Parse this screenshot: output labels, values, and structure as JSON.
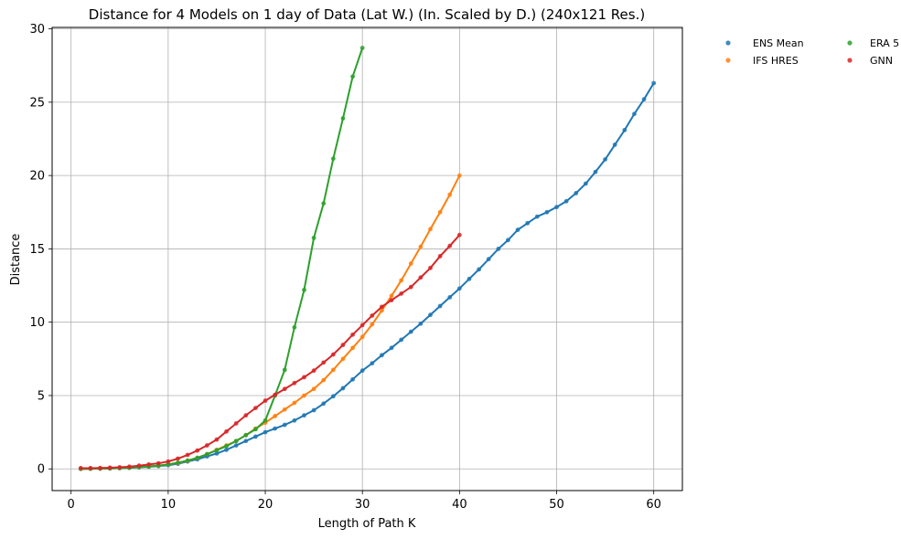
{
  "chart_data": {
    "type": "line",
    "title": "Distance for 4 Models on 1 day of Data (Lat W.) (In. Scaled by D.) (240x121 Res.)",
    "xlabel": "Length of Path K",
    "ylabel": "Distance",
    "xlim": [
      -1.95,
      62.95
    ],
    "ylim": [
      -1.48,
      30.1
    ],
    "xticks": [
      0,
      10,
      20,
      30,
      40,
      50,
      60
    ],
    "yticks": [
      0,
      5,
      10,
      15,
      20,
      25,
      30
    ],
    "grid": true,
    "legend": {
      "placement": "outside-top-right",
      "columns": 2
    },
    "series": [
      {
        "name": "ENS Mean",
        "color": "#1f77b4",
        "x": [
          1,
          2,
          3,
          4,
          5,
          6,
          7,
          8,
          9,
          10,
          11,
          12,
          13,
          14,
          15,
          16,
          17,
          18,
          19,
          20,
          21,
          22,
          23,
          24,
          25,
          26,
          27,
          28,
          29,
          30,
          31,
          32,
          33,
          34,
          35,
          36,
          37,
          38,
          39,
          40,
          41,
          42,
          43,
          44,
          45,
          46,
          47,
          48,
          49,
          50,
          51,
          52,
          53,
          54,
          55,
          56,
          57,
          58,
          59,
          60
        ],
        "values": [
          0.0,
          0.01,
          0.02,
          0.03,
          0.05,
          0.07,
          0.1,
          0.14,
          0.19,
          0.25,
          0.35,
          0.5,
          0.65,
          0.85,
          1.05,
          1.3,
          1.6,
          1.9,
          2.2,
          2.5,
          2.75,
          3.0,
          3.3,
          3.65,
          4.0,
          4.45,
          4.95,
          5.5,
          6.1,
          6.7,
          7.2,
          7.75,
          8.25,
          8.8,
          9.35,
          9.9,
          10.5,
          11.1,
          11.7,
          12.3,
          12.95,
          13.6,
          14.3,
          15.0,
          15.6,
          16.3,
          16.75,
          17.2,
          17.5,
          17.85,
          18.25,
          18.8,
          19.45,
          20.25,
          21.1,
          22.1,
          23.1,
          24.2,
          25.2,
          26.3
        ]
      },
      {
        "name": "IFS HRES",
        "color": "#ff7f0e",
        "x": [
          1,
          2,
          3,
          4,
          5,
          6,
          7,
          8,
          9,
          10,
          11,
          12,
          13,
          14,
          15,
          16,
          17,
          18,
          19,
          20,
          21,
          22,
          23,
          24,
          25,
          26,
          27,
          28,
          29,
          30,
          31,
          32,
          33,
          34,
          35,
          36,
          37,
          38,
          39,
          40
        ],
        "values": [
          0.0,
          0.01,
          0.02,
          0.04,
          0.06,
          0.09,
          0.12,
          0.17,
          0.22,
          0.3,
          0.4,
          0.55,
          0.75,
          1.0,
          1.3,
          1.6,
          1.9,
          2.3,
          2.75,
          3.15,
          3.6,
          4.05,
          4.5,
          5.0,
          5.45,
          6.05,
          6.75,
          7.5,
          8.25,
          9.0,
          9.85,
          10.8,
          11.8,
          12.85,
          14.0,
          15.15,
          16.35,
          17.5,
          18.7,
          20.0
        ]
      },
      {
        "name": "ERA 5",
        "color": "#2ca02c",
        "x": [
          1,
          2,
          3,
          4,
          5,
          6,
          7,
          8,
          9,
          10,
          11,
          12,
          13,
          14,
          15,
          16,
          17,
          18,
          19,
          20,
          21,
          22,
          23,
          24,
          25,
          26,
          27,
          28,
          29,
          30
        ],
        "values": [
          0.0,
          0.01,
          0.02,
          0.03,
          0.05,
          0.08,
          0.12,
          0.17,
          0.22,
          0.3,
          0.42,
          0.57,
          0.75,
          1.0,
          1.27,
          1.55,
          1.9,
          2.3,
          2.7,
          3.3,
          5.0,
          6.75,
          9.65,
          12.2,
          15.75,
          18.1,
          21.15,
          23.9,
          26.75,
          28.7
        ]
      },
      {
        "name": "GNN",
        "color": "#d62728",
        "x": [
          1,
          2,
          3,
          4,
          5,
          6,
          7,
          8,
          9,
          10,
          11,
          12,
          13,
          14,
          15,
          16,
          17,
          18,
          19,
          20,
          21,
          22,
          23,
          24,
          25,
          26,
          27,
          28,
          29,
          30,
          31,
          32,
          33,
          34,
          35,
          36,
          37,
          38,
          39,
          40
        ],
        "values": [
          0.05,
          0.05,
          0.06,
          0.08,
          0.11,
          0.15,
          0.22,
          0.3,
          0.38,
          0.5,
          0.7,
          0.95,
          1.25,
          1.6,
          2.0,
          2.55,
          3.1,
          3.65,
          4.15,
          4.65,
          5.05,
          5.45,
          5.85,
          6.25,
          6.7,
          7.25,
          7.8,
          8.45,
          9.15,
          9.8,
          10.45,
          11.05,
          11.5,
          11.95,
          12.4,
          13.05,
          13.7,
          14.5,
          15.2,
          15.95
        ]
      }
    ]
  }
}
